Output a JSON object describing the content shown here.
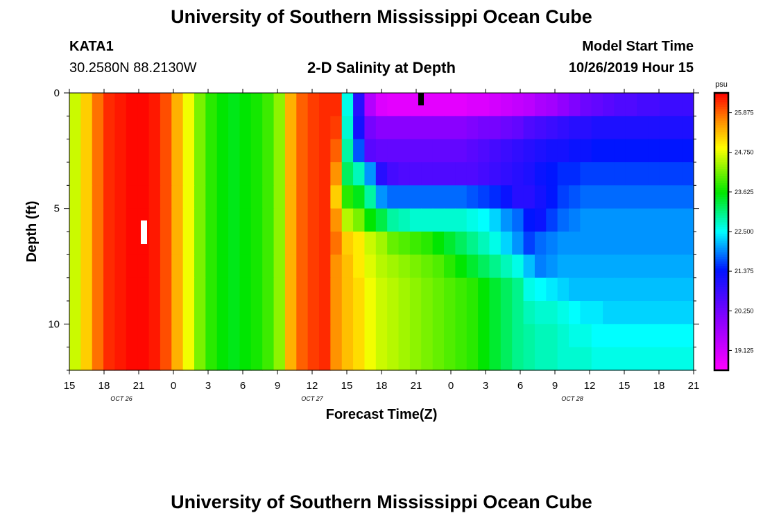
{
  "header": {
    "title": "University of Southern Mississippi Ocean Cube",
    "station": "KATA1",
    "coords": "30.2580N 88.2130W",
    "plot_title": "2-D Salinity at Depth",
    "model_label": "Model Start Time",
    "model_time": "10/26/2019 Hour 15"
  },
  "footer": {
    "title": "University of Southern Mississippi Ocean Cube"
  },
  "chart_data": {
    "type": "heatmap",
    "title": "2-D Salinity at Depth",
    "xlabel": "Forecast Time(Z)",
    "ylabel": "Depth (ft)",
    "x_range_hours": [
      0,
      54
    ],
    "x_ticks": [
      {
        "h": 0,
        "label": "15"
      },
      {
        "h": 3,
        "label": "18"
      },
      {
        "h": 6,
        "label": "21"
      },
      {
        "h": 9,
        "label": "0"
      },
      {
        "h": 12,
        "label": "3"
      },
      {
        "h": 15,
        "label": "6"
      },
      {
        "h": 18,
        "label": "9"
      },
      {
        "h": 21,
        "label": "12"
      },
      {
        "h": 24,
        "label": "15"
      },
      {
        "h": 27,
        "label": "18"
      },
      {
        "h": 30,
        "label": "21"
      },
      {
        "h": 33,
        "label": "0"
      },
      {
        "h": 36,
        "label": "3"
      },
      {
        "h": 39,
        "label": "6"
      },
      {
        "h": 42,
        "label": "9"
      },
      {
        "h": 45,
        "label": "12"
      },
      {
        "h": 48,
        "label": "15"
      },
      {
        "h": 51,
        "label": "18"
      },
      {
        "h": 54,
        "label": "21"
      }
    ],
    "date_labels": [
      {
        "h": 4.5,
        "label": "OCT 26"
      },
      {
        "h": 21,
        "label": "OCT 27"
      },
      {
        "h": 43.5,
        "label": "OCT 28"
      }
    ],
    "y_range": [
      0,
      12
    ],
    "y_ticks": [
      {
        "v": 0,
        "label": "0"
      },
      {
        "v": 5,
        "label": "5"
      },
      {
        "v": 10,
        "label": "10"
      }
    ],
    "colorbar": {
      "unit": "psu",
      "min": 18.5625,
      "max": 26.4375,
      "labels": [
        "25.875",
        "24.750",
        "23.625",
        "22.500",
        "21.375",
        "20.250",
        "19.125"
      ],
      "label_values": [
        25.875,
        24.75,
        23.625,
        22.5,
        21.375,
        20.25,
        19.125
      ]
    },
    "x_hours": [
      0,
      1,
      2,
      3,
      4,
      5,
      6,
      7,
      8,
      9,
      10,
      11,
      12,
      13,
      14,
      15,
      16,
      17,
      18,
      19,
      20,
      21,
      22,
      23,
      24,
      25,
      26,
      27,
      28,
      29,
      30,
      31,
      32,
      33,
      34,
      35,
      36,
      37,
      38,
      39,
      40,
      41,
      42,
      43,
      44,
      45,
      46,
      47,
      48,
      49,
      50,
      51,
      52,
      53,
      54
    ],
    "depth_rows": [
      0,
      1,
      2,
      3,
      4,
      5,
      6,
      7,
      8,
      9,
      10,
      11
    ],
    "salinity": [
      [
        24.6,
        25.2,
        25.8,
        26.2,
        26.3,
        26.4,
        26.4,
        26.3,
        26.0,
        25.4,
        24.8,
        24.2,
        23.8,
        23.6,
        23.5,
        23.6,
        23.7,
        23.9,
        24.3,
        25.4,
        25.9,
        26.1,
        26.2,
        26.2,
        22.6,
        21.0,
        19.5,
        19.0,
        18.9,
        18.9,
        18.9,
        18.9,
        18.9,
        18.9,
        18.9,
        19.0,
        19.0,
        19.1,
        19.2,
        19.3,
        19.4,
        19.6,
        19.7,
        19.9,
        20.1,
        20.3,
        20.4,
        20.5,
        20.6,
        20.6,
        20.7,
        20.7,
        20.8,
        20.8,
        20.8
      ],
      [
        24.6,
        25.2,
        25.8,
        26.2,
        26.3,
        26.4,
        26.4,
        26.3,
        26.0,
        25.4,
        24.8,
        24.2,
        23.8,
        23.6,
        23.5,
        23.6,
        23.7,
        23.9,
        24.3,
        25.4,
        25.9,
        26.1,
        26.2,
        26.1,
        22.7,
        21.2,
        20.2,
        20.0,
        20.0,
        20.0,
        20.0,
        20.0,
        20.0,
        20.0,
        20.0,
        20.1,
        20.2,
        20.2,
        20.3,
        20.4,
        20.6,
        20.7,
        20.8,
        20.9,
        21.0,
        21.0,
        21.1,
        21.1,
        21.1,
        21.1,
        21.1,
        21.1,
        21.1,
        21.1,
        21.1
      ],
      [
        24.6,
        25.2,
        25.8,
        26.2,
        26.3,
        26.4,
        26.4,
        26.3,
        26.0,
        25.4,
        24.8,
        24.2,
        23.8,
        23.6,
        23.5,
        23.6,
        23.7,
        23.9,
        24.3,
        25.4,
        25.9,
        26.1,
        26.2,
        25.9,
        22.9,
        21.7,
        20.5,
        20.4,
        20.4,
        20.4,
        20.4,
        20.4,
        20.4,
        20.4,
        20.4,
        20.5,
        20.6,
        20.7,
        20.8,
        20.9,
        21.0,
        21.1,
        21.2,
        21.2,
        21.3,
        21.3,
        21.4,
        21.4,
        21.4,
        21.4,
        21.4,
        21.4,
        21.4,
        21.4,
        21.4
      ],
      [
        24.6,
        25.2,
        25.8,
        26.2,
        26.3,
        26.4,
        26.4,
        26.3,
        26.0,
        25.4,
        24.8,
        24.2,
        23.8,
        23.6,
        23.5,
        23.6,
        23.7,
        23.9,
        24.3,
        25.4,
        25.9,
        26.1,
        26.2,
        25.6,
        23.2,
        22.8,
        22.0,
        21.0,
        20.7,
        20.6,
        20.6,
        20.6,
        20.6,
        20.6,
        20.6,
        20.6,
        20.7,
        20.8,
        20.9,
        21.0,
        21.1,
        21.3,
        21.4,
        21.5,
        21.5,
        21.6,
        21.6,
        21.6,
        21.6,
        21.6,
        21.6,
        21.6,
        21.6,
        21.6,
        21.6
      ],
      [
        24.6,
        25.2,
        25.8,
        26.2,
        26.3,
        26.4,
        26.4,
        26.3,
        26.0,
        25.4,
        24.8,
        24.2,
        23.8,
        23.6,
        23.5,
        23.6,
        23.7,
        23.9,
        24.3,
        25.4,
        25.9,
        26.1,
        26.2,
        25.2,
        23.8,
        23.5,
        22.9,
        22.0,
        21.8,
        21.8,
        21.8,
        21.8,
        21.8,
        21.8,
        21.8,
        21.7,
        21.6,
        21.5,
        21.3,
        21.0,
        21.0,
        21.2,
        21.4,
        21.6,
        21.7,
        21.8,
        21.8,
        21.8,
        21.8,
        21.8,
        21.8,
        21.8,
        21.8,
        21.8,
        21.8
      ],
      [
        24.6,
        25.2,
        25.8,
        26.2,
        26.3,
        26.4,
        26.4,
        26.3,
        26.0,
        25.4,
        24.8,
        24.2,
        23.8,
        23.6,
        23.5,
        23.6,
        23.7,
        23.9,
        24.3,
        25.4,
        25.9,
        26.1,
        26.2,
        25.6,
        24.5,
        24.2,
        23.6,
        23.3,
        22.9,
        22.8,
        22.7,
        22.7,
        22.7,
        22.7,
        22.7,
        22.6,
        22.5,
        22.3,
        22.0,
        21.8,
        21.4,
        21.3,
        21.6,
        21.8,
        21.9,
        22.0,
        22.0,
        22.0,
        22.0,
        22.0,
        22.0,
        22.0,
        22.0,
        22.0,
        22.0
      ],
      [
        24.6,
        25.2,
        25.8,
        26.2,
        26.3,
        26.4,
        26.4,
        26.3,
        26.0,
        25.4,
        24.8,
        24.2,
        23.8,
        23.6,
        23.5,
        23.6,
        23.7,
        23.9,
        24.3,
        25.4,
        25.9,
        26.1,
        26.2,
        25.8,
        25.2,
        25.0,
        24.6,
        24.4,
        24.1,
        24.0,
        23.9,
        23.8,
        23.6,
        23.4,
        23.2,
        23.0,
        22.8,
        22.6,
        22.3,
        22.0,
        21.6,
        21.8,
        21.9,
        22.0,
        22.0,
        22.0,
        22.0,
        22.0,
        22.0,
        22.0,
        22.0,
        22.0,
        22.0,
        22.0,
        22.0
      ],
      [
        24.6,
        25.2,
        25.8,
        26.2,
        26.3,
        26.4,
        26.4,
        26.3,
        26.0,
        25.4,
        24.8,
        24.2,
        23.8,
        23.6,
        23.5,
        23.6,
        23.7,
        23.9,
        24.3,
        25.4,
        25.9,
        26.1,
        26.2,
        25.6,
        25.3,
        25.0,
        24.7,
        24.5,
        24.4,
        24.3,
        24.2,
        24.1,
        24.0,
        23.8,
        23.6,
        23.4,
        23.2,
        23.0,
        22.8,
        22.6,
        22.2,
        21.9,
        22.0,
        22.1,
        22.1,
        22.1,
        22.1,
        22.1,
        22.1,
        22.1,
        22.1,
        22.1,
        22.1,
        22.1,
        22.1
      ],
      [
        24.6,
        25.2,
        25.8,
        26.2,
        26.3,
        26.4,
        26.4,
        26.3,
        26.0,
        25.4,
        24.8,
        24.2,
        23.8,
        23.6,
        23.5,
        23.6,
        23.7,
        23.9,
        24.3,
        25.4,
        25.9,
        26.1,
        26.2,
        25.6,
        25.3,
        25.1,
        24.8,
        24.6,
        24.5,
        24.4,
        24.3,
        24.2,
        24.1,
        24.0,
        23.9,
        23.8,
        23.6,
        23.4,
        23.2,
        23.0,
        22.6,
        22.5,
        22.4,
        22.3,
        22.2,
        22.2,
        22.2,
        22.2,
        22.2,
        22.2,
        22.2,
        22.2,
        22.2,
        22.2,
        22.2
      ],
      [
        24.6,
        25.2,
        25.8,
        26.2,
        26.3,
        26.4,
        26.4,
        26.3,
        26.0,
        25.4,
        24.8,
        24.2,
        23.8,
        23.6,
        23.5,
        23.6,
        23.7,
        23.9,
        24.3,
        25.4,
        25.9,
        26.1,
        26.2,
        25.6,
        25.3,
        25.1,
        24.8,
        24.6,
        24.5,
        24.4,
        24.3,
        24.2,
        24.1,
        24.0,
        23.9,
        23.8,
        23.6,
        23.4,
        23.2,
        23.0,
        22.8,
        22.7,
        22.7,
        22.6,
        22.5,
        22.4,
        22.4,
        22.3,
        22.3,
        22.3,
        22.3,
        22.3,
        22.3,
        22.3,
        22.3
      ],
      [
        24.6,
        25.2,
        25.8,
        26.2,
        26.3,
        26.4,
        26.4,
        26.3,
        26.0,
        25.4,
        24.8,
        24.2,
        23.8,
        23.6,
        23.5,
        23.6,
        23.7,
        23.9,
        24.3,
        25.4,
        25.9,
        26.1,
        26.2,
        25.6,
        25.3,
        25.1,
        24.8,
        24.6,
        24.5,
        24.4,
        24.3,
        24.2,
        24.1,
        24.0,
        23.9,
        23.8,
        23.6,
        23.4,
        23.2,
        23.0,
        22.9,
        22.8,
        22.8,
        22.7,
        22.6,
        22.6,
        22.5,
        22.5,
        22.5,
        22.5,
        22.5,
        22.5,
        22.5,
        22.5,
        22.5
      ],
      [
        24.6,
        25.2,
        25.8,
        26.2,
        26.3,
        26.4,
        26.4,
        26.3,
        26.0,
        25.4,
        24.8,
        24.2,
        23.8,
        23.6,
        23.5,
        23.6,
        23.7,
        23.9,
        24.3,
        25.4,
        25.9,
        26.1,
        26.2,
        25.6,
        25.3,
        25.1,
        24.8,
        24.6,
        24.5,
        24.4,
        24.3,
        24.2,
        24.1,
        24.0,
        23.9,
        23.8,
        23.6,
        23.4,
        23.2,
        23.0,
        22.9,
        22.8,
        22.8,
        22.7,
        22.7,
        22.7,
        22.6,
        22.6,
        22.6,
        22.6,
        22.6,
        22.6,
        22.6,
        22.6,
        22.6
      ]
    ]
  }
}
